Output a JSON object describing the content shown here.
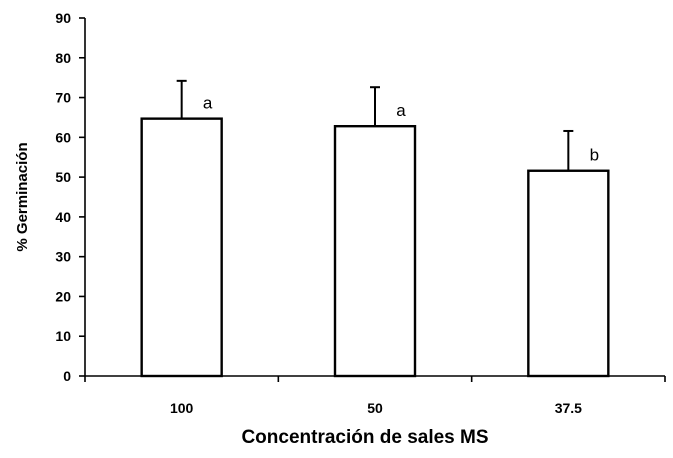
{
  "chart_data": {
    "type": "bar",
    "title": "",
    "xlabel": "Concentración de sales MS",
    "ylabel": "% Germinación",
    "categories": [
      "100",
      "50",
      "37.5"
    ],
    "values": [
      64.7,
      62.8,
      51.6
    ],
    "error_bars": [
      9.5,
      9.8,
      10.0
    ],
    "significance_labels": [
      "a",
      "a",
      "b"
    ],
    "ylim": [
      0,
      90
    ],
    "yticks": [
      "0",
      "10",
      "20",
      "30",
      "40",
      "50",
      "60",
      "70",
      "80",
      "90"
    ],
    "grid": false,
    "legend": "none",
    "bar_fill": "#ffffff",
    "bar_stroke": "#000000"
  }
}
